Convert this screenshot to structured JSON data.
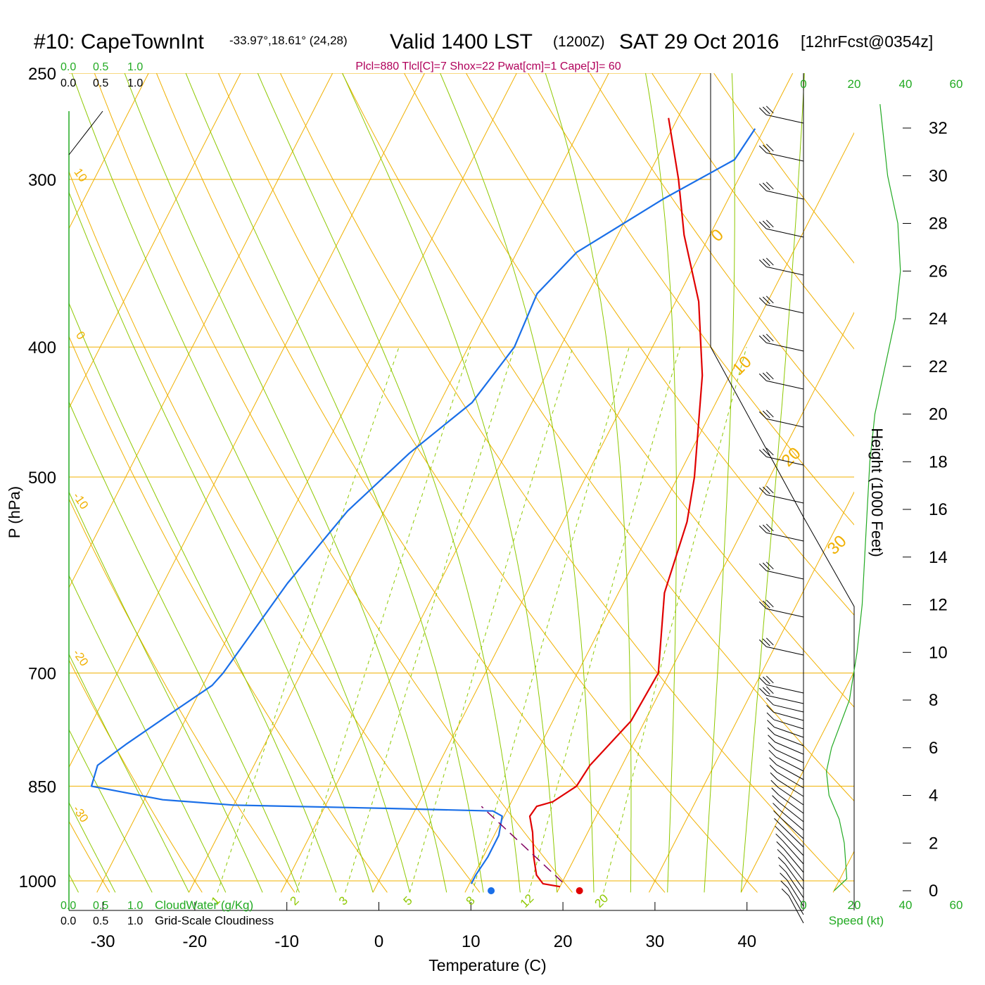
{
  "title": {
    "station": "#10: CapeTownInt",
    "coords": "-33.97°,18.61° (24,28)",
    "valid": "Valid 1400 LST",
    "zulu": "(1200Z)",
    "date": "SAT 29 Oct 2016",
    "forecast": "[12hrFcst@0354z]"
  },
  "indices": "Plcl=880 Tlcl[C]=7 Shox=22 Pwat[cm]=1 Cape[J]= 60",
  "cloud_scale": {
    "ticks": [
      "0.0",
      "0.5",
      "1.0"
    ]
  },
  "bottom_legend": {
    "cloudwater": "CloudWater (g/Kg)",
    "cloudiness": "Grid-Scale Cloudiness"
  },
  "speed_label": "Speed (kt)",
  "speed_ticks": [
    "0",
    "20",
    "40",
    "60"
  ],
  "height_label": "Height (1000 Feet)",
  "colors": {
    "temperature": "#e00000",
    "dewpoint": "#1a6fe8",
    "parcel": "#800060",
    "isotherm": "#f0b000",
    "dry_adiabat": "#8ec800",
    "mixing_ratio": "#8ec800",
    "wind_speed": "#22aa22",
    "indices": "#b0005a",
    "green_text": "#22aa22"
  },
  "chart_data": {
    "type": "line",
    "subtype": "skew-t log-p sounding",
    "xlabel": "Temperature (C)",
    "ylabel": "P (hPa)",
    "x_ticks": [
      -30,
      -20,
      -10,
      0,
      10,
      20,
      30,
      40
    ],
    "p_ticks": [
      250,
      300,
      400,
      500,
      700,
      850,
      1000
    ],
    "p_range": [
      1020,
      250
    ],
    "height_ticks": [
      32,
      30,
      28,
      26,
      24,
      22,
      20,
      18,
      16,
      14,
      12,
      10,
      8,
      6,
      4,
      2,
      0
    ],
    "isotherm_labels": [
      -10,
      0,
      10,
      20,
      30
    ],
    "dry_adiabat_labels": [
      10,
      0,
      -10,
      -20,
      -30
    ],
    "mixing_ratio_labels": [
      "1",
      "2",
      "3",
      "5",
      "8",
      "12",
      "20"
    ],
    "temperature": {
      "pressure": [
        1010,
        1005,
        990,
        960,
        920,
        895,
        880,
        873,
        850,
        820,
        760,
        700,
        610,
        540,
        500,
        420,
        370,
        330,
        300,
        270
      ],
      "temp": [
        20.0,
        18.0,
        16.8,
        15.5,
        14.0,
        12.8,
        13.0,
        14.5,
        16.2,
        16.5,
        18.5,
        18.8,
        15.0,
        13.5,
        11.8,
        7.0,
        2.5,
        -2.8,
        -6.5,
        -11.0
      ]
    },
    "dewpoint": {
      "pressure": [
        1005,
        990,
        960,
        925,
        895,
        887,
        883,
        878,
        870,
        850,
        820,
        790,
        745,
        715,
        700,
        600,
        530,
        480,
        440,
        400,
        365,
        340,
        310,
        290,
        275
      ],
      "temp": [
        10.2,
        10.2,
        10.5,
        10.5,
        9.8,
        8.5,
        -3.0,
        -20.0,
        -28.0,
        -36.5,
        -37.0,
        -35.0,
        -31.5,
        -29.0,
        -28.5,
        -26.5,
        -24.0,
        -20.5,
        -16.5,
        -15.0,
        -15.5,
        -13.5,
        -7.0,
        -1.5,
        -1.0
      ]
    },
    "parcel": {
      "pressure": [
        1002,
        880
      ],
      "temp": [
        20.0,
        7.0
      ]
    },
    "surface_temp": 21.8,
    "surface_dewpoint": 12.2,
    "wind_speed_profile": {
      "height_kft": [
        0.0,
        0.5,
        2.0,
        3.0,
        4.0,
        5.0,
        6.0,
        8.0,
        10.0,
        12.0,
        14.0,
        16.0,
        18.0,
        20.0,
        22.0,
        24.0,
        26.0,
        28.0,
        30.0,
        32.0,
        33.0
      ],
      "speed": [
        12,
        17,
        16,
        14,
        10,
        9,
        11,
        18,
        21,
        23,
        24,
        25,
        26,
        28,
        32,
        36,
        38,
        37,
        33,
        31,
        30
      ]
    }
  }
}
